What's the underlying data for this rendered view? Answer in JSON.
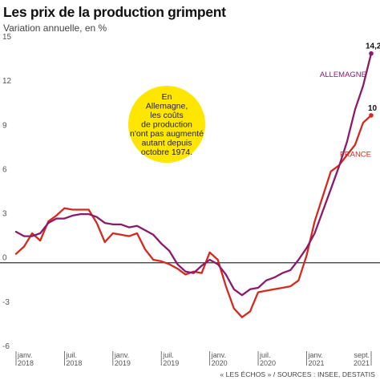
{
  "title": "Les prix de la production grimpent",
  "subtitle": "Variation annuelle, en %",
  "footer": "« LES ÉCHOS » / SOURCES : INSEE, DESTATIS",
  "annotation": [
    "En",
    "Allemagne,",
    "les coûts",
    "de production",
    "n'ont pas augmenté",
    "autant depuis",
    "octobre 1974."
  ],
  "colors": {
    "germany": "#8b1a6b",
    "france": "#d42a1e",
    "zero_line": "#333333",
    "annotation_bg": "#ffe600",
    "axis": "#555555"
  },
  "chart_data": {
    "type": "line",
    "title": "Les prix de la production grimpent",
    "ylabel": "Variation annuelle, en %",
    "ylim": [
      -6,
      15
    ],
    "yticks": [
      -6,
      -3,
      0,
      3,
      6,
      9,
      12,
      15
    ],
    "xticks": [
      {
        "month": "janv.",
        "year": "2018"
      },
      {
        "month": "juil.",
        "year": "2018"
      },
      {
        "month": "janv.",
        "year": "2019"
      },
      {
        "month": "juil.",
        "year": "2019"
      },
      {
        "month": "janv.",
        "year": "2020"
      },
      {
        "month": "juil.",
        "year": "2020"
      },
      {
        "month": "janv.",
        "year": "2021"
      },
      {
        "month": "sept.",
        "year": "2021"
      }
    ],
    "x": [
      "2018-01",
      "2018-02",
      "2018-03",
      "2018-04",
      "2018-05",
      "2018-06",
      "2018-07",
      "2018-08",
      "2018-09",
      "2018-10",
      "2018-11",
      "2018-12",
      "2019-01",
      "2019-02",
      "2019-03",
      "2019-04",
      "2019-05",
      "2019-06",
      "2019-07",
      "2019-08",
      "2019-09",
      "2019-10",
      "2019-11",
      "2019-12",
      "2020-01",
      "2020-02",
      "2020-03",
      "2020-04",
      "2020-05",
      "2020-06",
      "2020-07",
      "2020-08",
      "2020-09",
      "2020-10",
      "2020-11",
      "2020-12",
      "2021-01",
      "2021-02",
      "2021-03",
      "2021-04",
      "2021-05",
      "2021-06",
      "2021-07",
      "2021-08",
      "2021-09"
    ],
    "series": [
      {
        "name": "ALLEMAGNE",
        "color": "#8b1a6b",
        "end_label": "14,2",
        "values": [
          2.1,
          1.8,
          1.8,
          2.0,
          2.7,
          3.0,
          3.0,
          3.2,
          3.3,
          3.3,
          3.1,
          2.7,
          2.6,
          2.6,
          2.4,
          2.5,
          2.2,
          1.9,
          1.3,
          0.8,
          -0.1,
          -0.6,
          -0.7,
          -0.2,
          0.2,
          -0.1,
          -0.8,
          -1.8,
          -2.2,
          -1.8,
          -1.7,
          -1.2,
          -1.0,
          -0.7,
          -0.5,
          0.2,
          1.0,
          2.0,
          3.5,
          5.0,
          6.5,
          8.2,
          10.4,
          12.0,
          14.2
        ]
      },
      {
        "name": "FRANCE",
        "color": "#d42a1e",
        "end_label": "10",
        "values": [
          0.6,
          1.1,
          2.0,
          1.5,
          2.8,
          3.2,
          3.7,
          3.6,
          3.6,
          3.6,
          2.7,
          1.4,
          2.0,
          1.9,
          1.8,
          2.0,
          0.9,
          0.2,
          0.1,
          -0.1,
          -0.4,
          -0.8,
          -0.6,
          -0.7,
          0.7,
          0.2,
          -1.6,
          -3.1,
          -3.7,
          -3.3,
          -2.0,
          -1.9,
          -1.8,
          -1.7,
          -1.6,
          -1.2,
          0.5,
          2.8,
          4.5,
          6.2,
          6.6,
          7.3,
          8.0,
          9.5,
          10.0
        ]
      }
    ]
  }
}
